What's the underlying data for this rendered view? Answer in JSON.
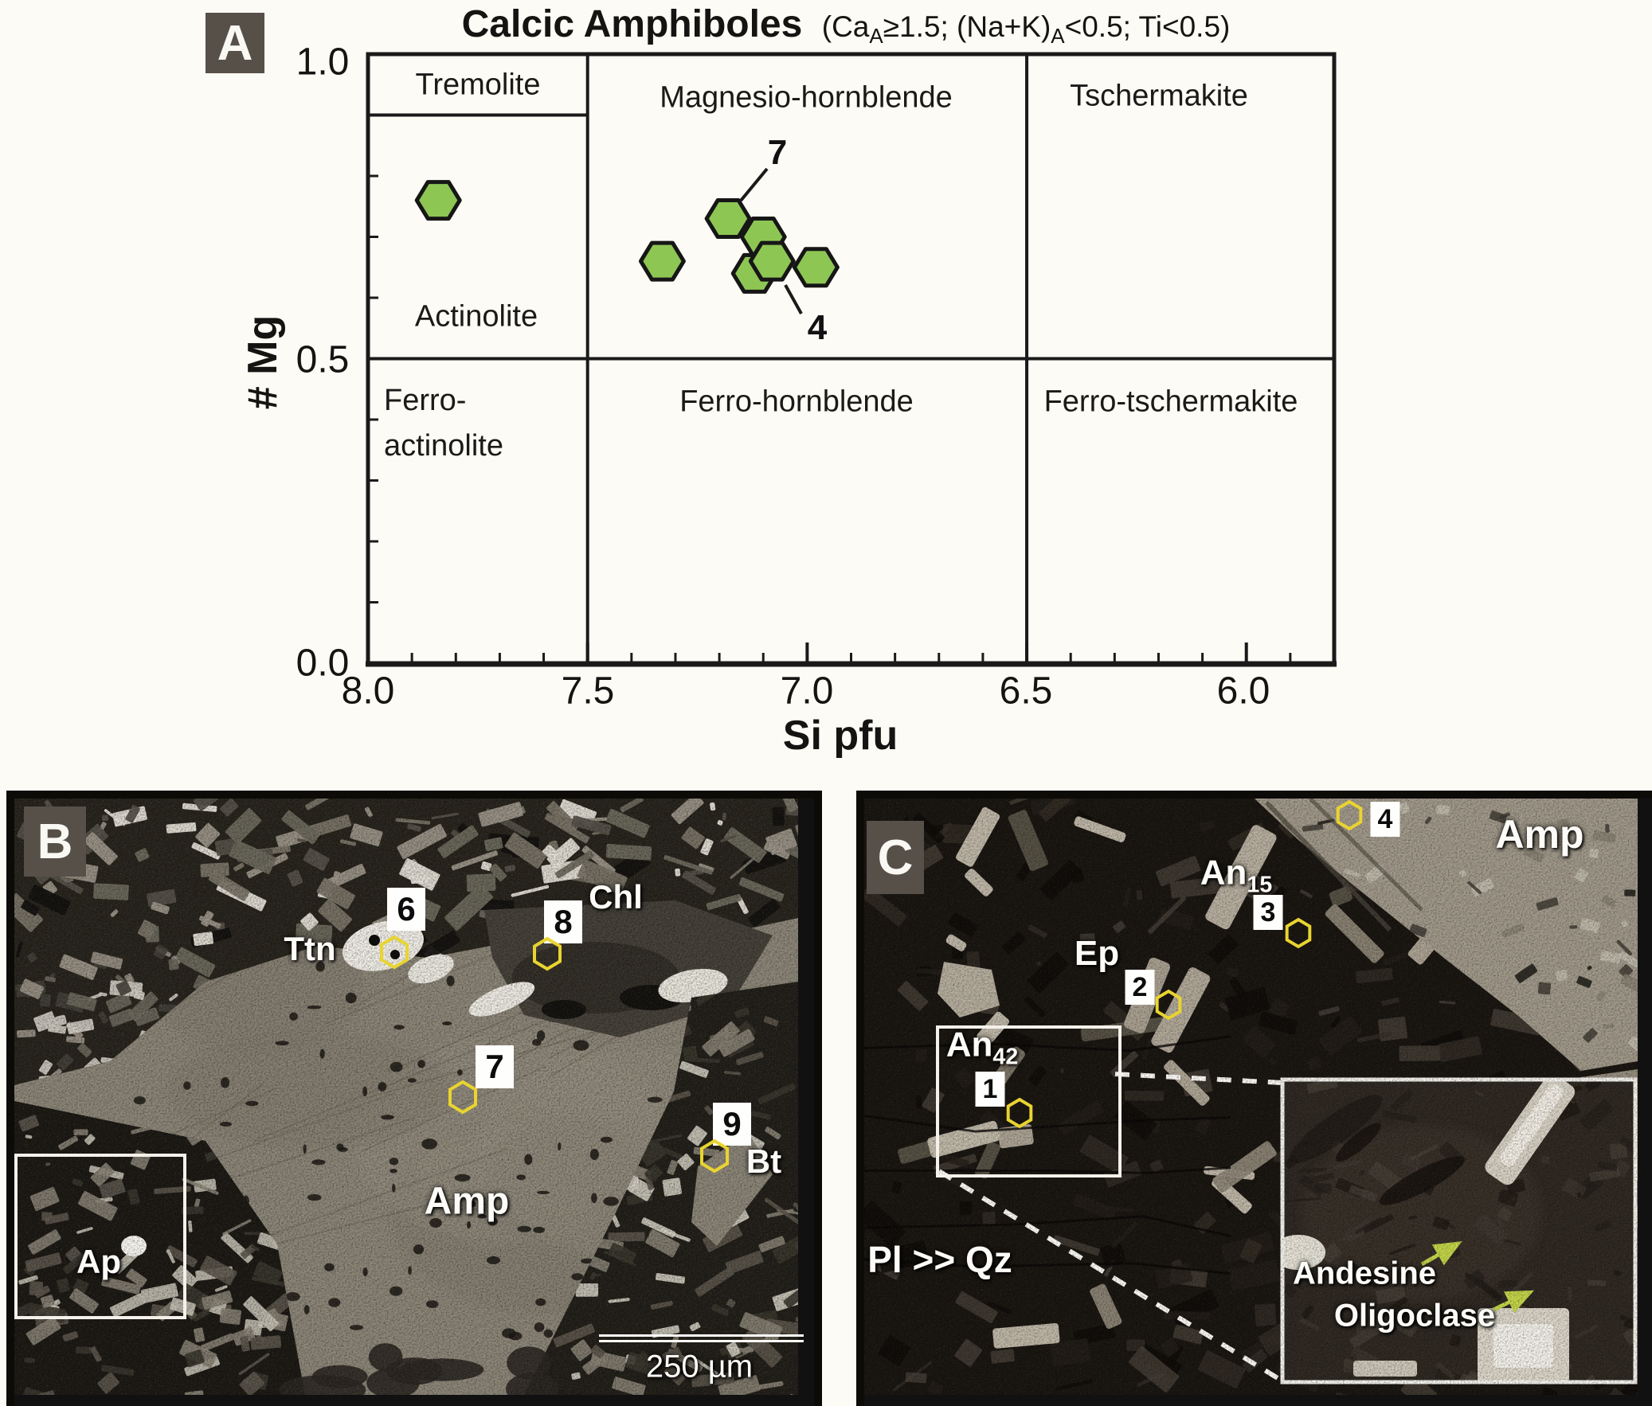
{
  "panel_a": {
    "label": "A",
    "title": "Calcic Amphiboles",
    "subtitle": {
      "p1": "(Ca",
      "sub1": "A",
      "p2": "≥1.5; (Na+K)",
      "sub2": "A",
      "p3": "<0.5; Ti<0.5)"
    },
    "xlabel": "Si pfu",
    "ylabel": "# Mg",
    "x_tick_labels": [
      "8.0",
      "7.5",
      "7.0",
      "6.5",
      "6.0"
    ],
    "y_tick_labels": [
      "1.0",
      "0.5",
      "0.0"
    ],
    "fields": {
      "tremolite": "Tremolite",
      "magnesio_hornblende": "Magnesio-hornblende",
      "tschermakite": "Tschermakite",
      "actinolite": "Actinolite",
      "ferro_actinolite_line1": "Ferro-",
      "ferro_actinolite_line2": "actinolite",
      "ferro_hornblende": "Ferro-hornblende",
      "ferro_tschermakite": "Ferro-tschermakite"
    },
    "point_labels": {
      "seven": "7",
      "four": "4"
    }
  },
  "chart_data": {
    "type": "scatter",
    "title": "Calcic Amphiboles",
    "xlabel": "Si pfu",
    "ylabel": "# Mg",
    "x_axis_reversed": true,
    "xlim": [
      8.0,
      5.8
    ],
    "ylim": [
      0.0,
      1.0
    ],
    "x_ticks": [
      8.0,
      7.5,
      7.0,
      6.5,
      6.0
    ],
    "y_ticks": [
      1.0,
      0.5,
      0.0
    ],
    "minor_tick_step": 0.1,
    "marker": "hexagon",
    "marker_fill": "#8ec654",
    "marker_stroke": "#161616",
    "points": [
      {
        "si": 7.84,
        "mg": 0.76
      },
      {
        "si": 7.33,
        "mg": 0.66
      },
      {
        "si": 7.18,
        "mg": 0.73,
        "label": "7"
      },
      {
        "si": 7.1,
        "mg": 0.7
      },
      {
        "si": 7.12,
        "mg": 0.64
      },
      {
        "si": 7.08,
        "mg": 0.66,
        "label": "4"
      },
      {
        "si": 6.98,
        "mg": 0.65
      }
    ],
    "field_boundaries": {
      "vertical_si": [
        7.5,
        6.5
      ],
      "horizontal_mg": [
        0.5
      ],
      "tremolite_actinolite_mg": 0.9,
      "tremolite_line_si_range": [
        8.0,
        7.5
      ]
    }
  },
  "panel_b": {
    "label": "B",
    "minerals": {
      "ttn": "Ttn",
      "chl": "Chl",
      "amp": "Amp",
      "bt": "Bt",
      "ap": "Ap"
    },
    "points": {
      "p6": "6",
      "p8": "8",
      "p7": "7",
      "p9": "9"
    },
    "scale_bar": "250 µm"
  },
  "panel_c": {
    "label": "C",
    "minerals": {
      "amp": "Amp",
      "an15_base": "An",
      "an15_sub": "15",
      "ep": "Ep",
      "an42_base": "An",
      "an42_sub": "42",
      "matrix": "Pl >> Qz"
    },
    "points": {
      "p4": "4",
      "p3": "3",
      "p2": "2",
      "p1": "1"
    },
    "inset": {
      "andesine": "Andesine",
      "oligoclase": "Oligoclase"
    }
  },
  "colors": {
    "marker_green": "#8ec654",
    "probe_marker_yellow": "#e9d430",
    "panel_label_bg": "#575049",
    "inset_arrow_green": "#c6d84a",
    "axis_black": "#1a1a1a"
  }
}
